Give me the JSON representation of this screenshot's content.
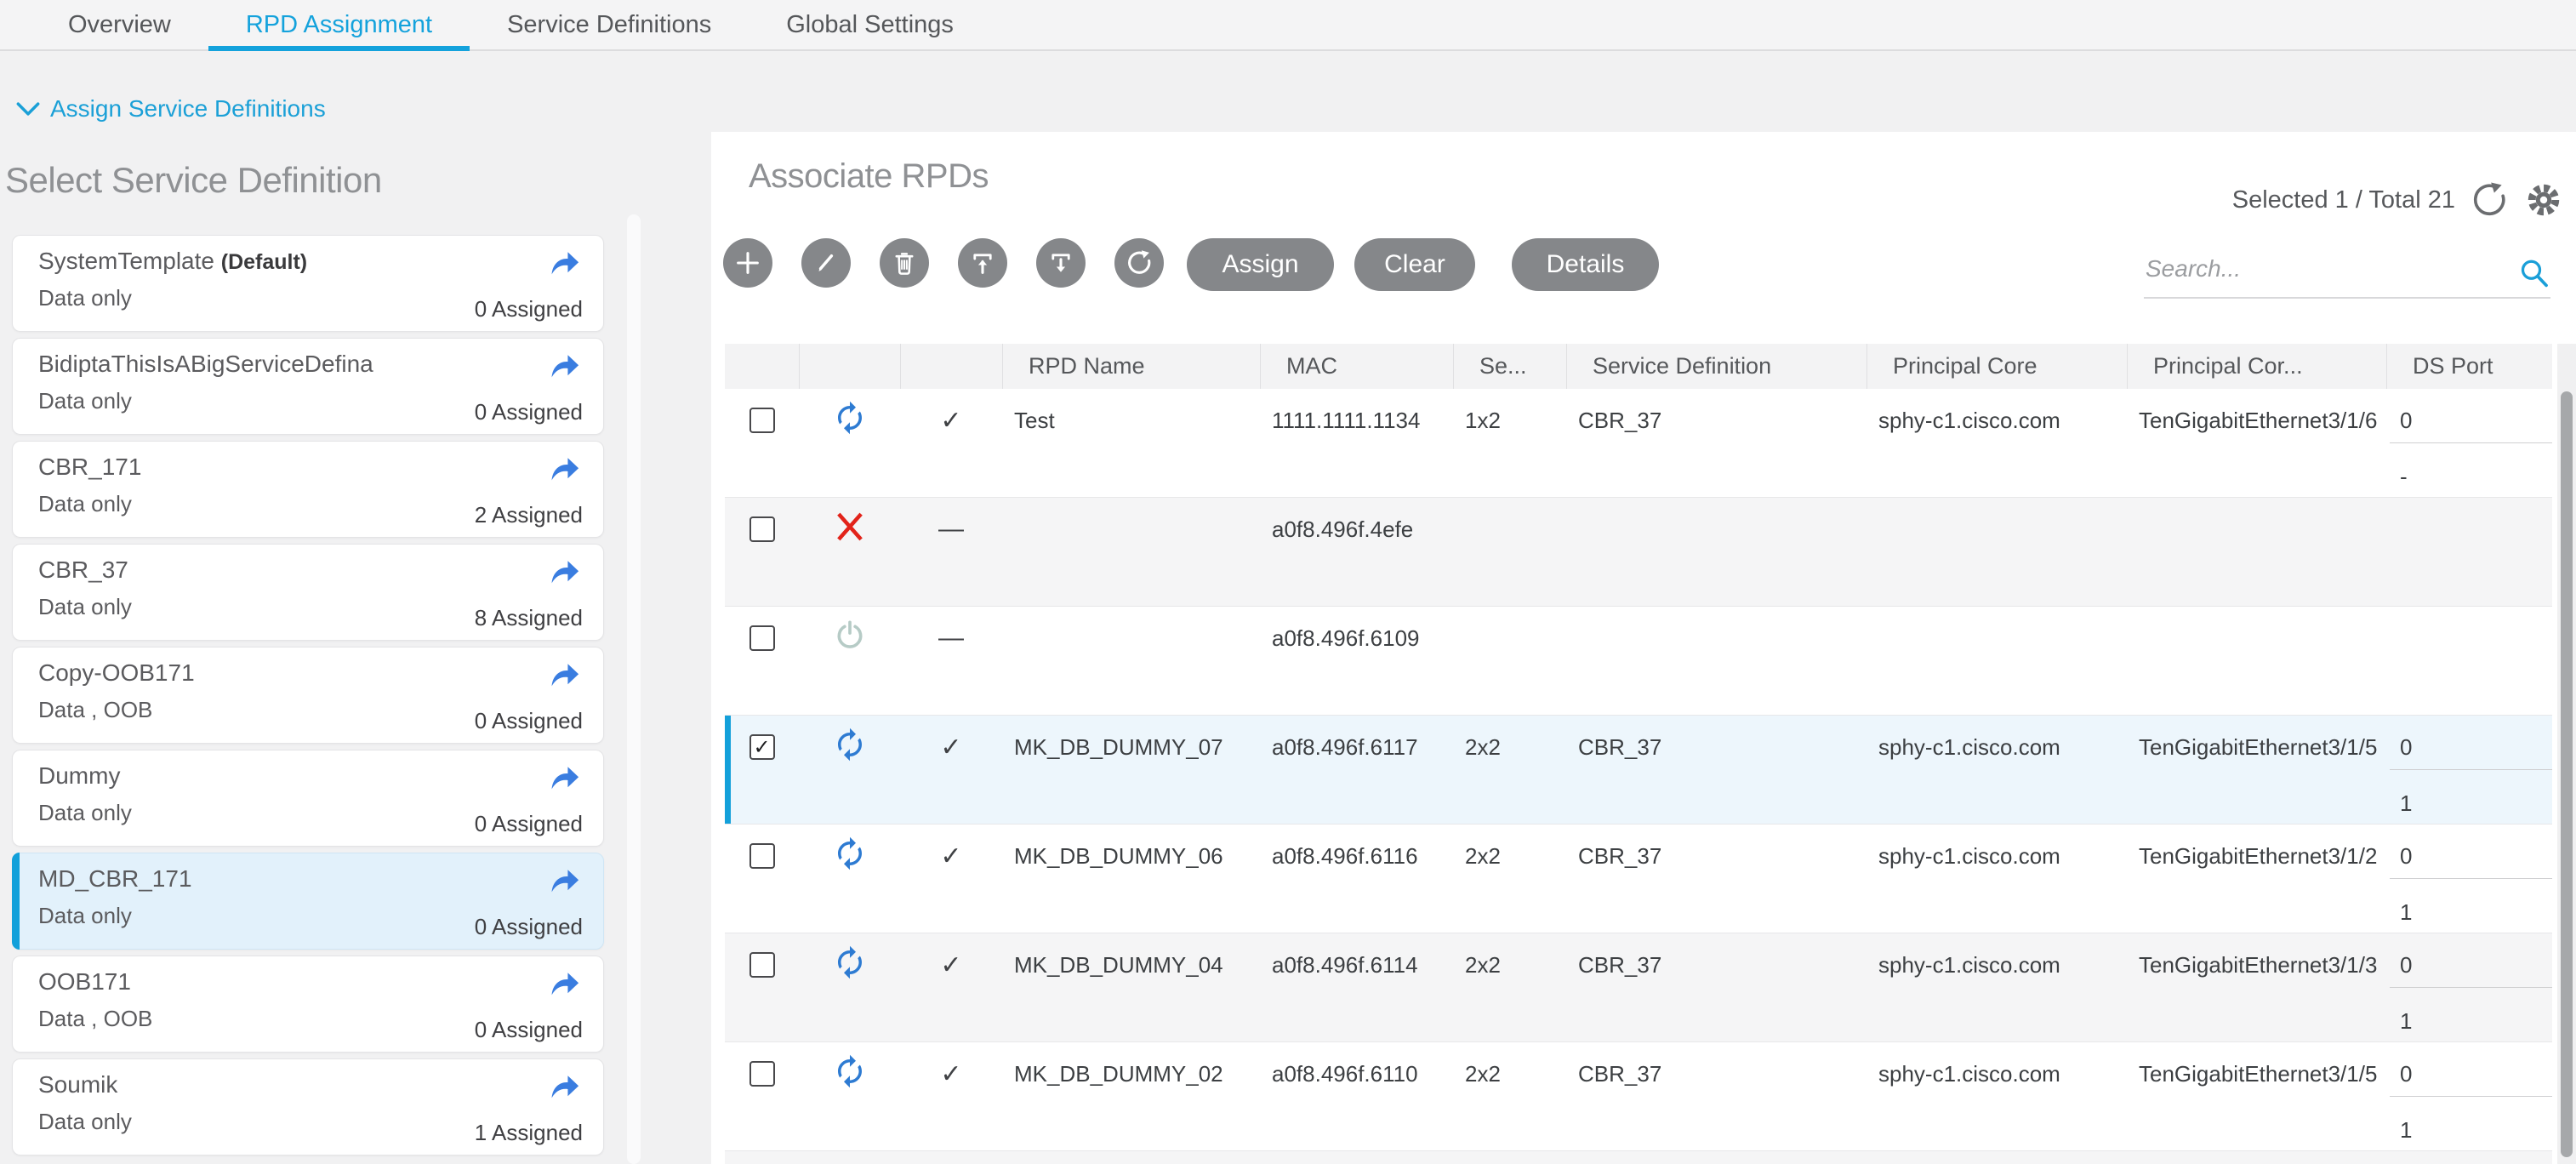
{
  "tabs": [
    {
      "label": "Overview",
      "active": false
    },
    {
      "label": "RPD Assignment",
      "active": true
    },
    {
      "label": "Service Definitions",
      "active": false
    },
    {
      "label": "Global Settings",
      "active": false
    }
  ],
  "assign_link": "Assign Service Definitions",
  "left_panel": {
    "title": "Select Service Definition",
    "cards": [
      {
        "name": "SystemTemplate",
        "suffix": "(Default)",
        "type": "Data only",
        "assigned": "0 Assigned",
        "selected": false
      },
      {
        "name": "BidiptaThisIsABigServiceDefina",
        "type": "Data only",
        "assigned": "0 Assigned",
        "selected": false
      },
      {
        "name": "CBR_171",
        "type": "Data only",
        "assigned": "2 Assigned",
        "selected": false
      },
      {
        "name": "CBR_37",
        "type": "Data only",
        "assigned": "8 Assigned",
        "selected": false
      },
      {
        "name": "Copy-OOB171",
        "type": "Data , OOB",
        "assigned": "0 Assigned",
        "selected": false
      },
      {
        "name": "Dummy",
        "type": "Data only",
        "assigned": "0 Assigned",
        "selected": false
      },
      {
        "name": "MD_CBR_171",
        "type": "Data only",
        "assigned": "0 Assigned",
        "selected": true
      },
      {
        "name": "OOB171",
        "type": "Data , OOB",
        "assigned": "0 Assigned",
        "selected": false
      },
      {
        "name": "Soumik",
        "type": "Data only",
        "assigned": "1 Assigned",
        "selected": false
      }
    ]
  },
  "right_panel": {
    "title": "Associate RPDs",
    "selection_summary": "Selected 1 / Total 21",
    "buttons": {
      "assign": "Assign",
      "clear": "Clear",
      "details": "Details"
    },
    "search_placeholder": "Search...",
    "table": {
      "columns": [
        "",
        "",
        "",
        "RPD Name",
        "MAC",
        "Se...",
        "Service Definition",
        "Principal Core",
        "Principal Cor...",
        "DS Port"
      ],
      "rows": [
        {
          "checked": false,
          "status": "sync",
          "verified": "check",
          "name": "Test",
          "mac": "1111.1111.1134",
          "se": "1x2",
          "sd": "CBR_37",
          "core": "sphy-c1.cisco.com",
          "core2": "TenGigabitEthernet3/1/6",
          "ds": [
            "0",
            "-"
          ],
          "selected": false
        },
        {
          "checked": false,
          "status": "error",
          "verified": "dash",
          "name": "",
          "mac": "a0f8.496f.4efe",
          "se": "",
          "sd": "",
          "core": "",
          "core2": "",
          "ds": [],
          "selected": false
        },
        {
          "checked": false,
          "status": "power",
          "verified": "dash",
          "name": "",
          "mac": "a0f8.496f.6109",
          "se": "",
          "sd": "",
          "core": "",
          "core2": "",
          "ds": [],
          "selected": false
        },
        {
          "checked": true,
          "status": "sync",
          "verified": "check",
          "name": "MK_DB_DUMMY_07",
          "mac": "a0f8.496f.6117",
          "se": "2x2",
          "sd": "CBR_37",
          "core": "sphy-c1.cisco.com",
          "core2": "TenGigabitEthernet3/1/5",
          "ds": [
            "0",
            "1"
          ],
          "selected": true
        },
        {
          "checked": false,
          "status": "sync",
          "verified": "check",
          "name": "MK_DB_DUMMY_06",
          "mac": "a0f8.496f.6116",
          "se": "2x2",
          "sd": "CBR_37",
          "core": "sphy-c1.cisco.com",
          "core2": "TenGigabitEthernet3/1/2",
          "ds": [
            "0",
            "1"
          ],
          "selected": false
        },
        {
          "checked": false,
          "status": "sync",
          "verified": "check",
          "name": "MK_DB_DUMMY_04",
          "mac": "a0f8.496f.6114",
          "se": "2x2",
          "sd": "CBR_37",
          "core": "sphy-c1.cisco.com",
          "core2": "TenGigabitEthernet3/1/3",
          "ds": [
            "0",
            "1"
          ],
          "selected": false
        },
        {
          "checked": false,
          "status": "sync",
          "verified": "check",
          "name": "MK_DB_DUMMY_02",
          "mac": "a0f8.496f.6110",
          "se": "2x2",
          "sd": "CBR_37",
          "core": "sphy-c1.cisco.com",
          "core2": "TenGigabitEthernet3/1/5",
          "ds": [
            "0",
            "1"
          ],
          "selected": false
        }
      ]
    }
  },
  "colors": {
    "accent": "#14a2dc",
    "link_blue": "#1ba0d7",
    "sync_blue": "#2e7bd2",
    "error_red": "#e2231a",
    "power_pale": "#b6cbc6",
    "card_arrow_blue": "#3a7de0",
    "button_gray": "#85878a",
    "selected_row_bg": "#edf6fc",
    "selected_card_bg": "#e2f1fb"
  }
}
